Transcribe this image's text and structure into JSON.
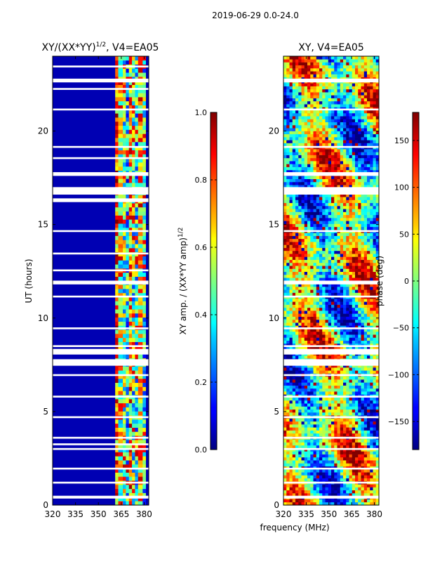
{
  "figure_title": "2019-06-29 0.0-24.0",
  "chart_data": [
    {
      "type": "heatmap",
      "title_main": "XY/(XX*YY)",
      "title_exponent": "1/2",
      "title_suffix": ", V4=EA05",
      "xlabel": "",
      "ylabel": "UT (hours)",
      "xlim": [
        320,
        383
      ],
      "ylim": [
        0,
        24
      ],
      "xticks": [
        320,
        335,
        350,
        365,
        380
      ],
      "yticks": [
        0,
        5,
        10,
        15,
        20
      ],
      "colorbar": {
        "label_main": "XY amp. / (XX*YY amp)",
        "label_exponent": "1/2",
        "range": [
          0.0,
          1.0
        ],
        "ticks": [
          0.0,
          0.2,
          0.4,
          0.6,
          0.8,
          1.0
        ],
        "tick_labels": [
          "0.0",
          "0.2",
          "0.4",
          "0.6",
          "0.8",
          "1.0"
        ],
        "colormap": "jet"
      },
      "band_ranges_mhz": [
        [
          361,
          363,
          0.75
        ],
        [
          363,
          366,
          0.55
        ],
        [
          366,
          368,
          0.5
        ],
        [
          368,
          370,
          0.35
        ],
        [
          370,
          372,
          0.7
        ],
        [
          372,
          374,
          0.45
        ],
        [
          374,
          376,
          0.4
        ],
        [
          376,
          379,
          0.65
        ],
        [
          379,
          381,
          0.4
        ]
      ],
      "background_value": 0.05,
      "blank_rows_hours": [
        [
          0.35,
          0.5
        ],
        [
          1.15,
          1.25
        ],
        [
          1.9,
          2.0
        ],
        [
          2.95,
          3.05
        ],
        [
          3.2,
          3.3
        ],
        [
          3.55,
          3.65
        ],
        [
          4.65,
          4.75
        ],
        [
          5.75,
          5.85
        ],
        [
          6.9,
          7.0
        ],
        [
          7.45,
          7.8
        ],
        [
          8.05,
          8.35
        ],
        [
          8.45,
          8.55
        ],
        [
          9.4,
          9.5
        ],
        [
          11.1,
          11.2
        ],
        [
          11.8,
          12.0
        ],
        [
          12.5,
          12.6
        ],
        [
          13.4,
          13.5
        ],
        [
          14.6,
          14.7
        ],
        [
          16.2,
          16.4
        ],
        [
          16.6,
          17.0
        ],
        [
          17.6,
          17.8
        ],
        [
          18.5,
          18.6
        ],
        [
          19.1,
          19.2
        ],
        [
          21.1,
          21.2
        ],
        [
          22.2,
          22.3
        ],
        [
          22.6,
          22.8
        ],
        [
          23.4,
          23.5
        ]
      ]
    },
    {
      "type": "heatmap",
      "title": "XY, V4=EA05",
      "xlabel": "frequency (MHz)",
      "ylabel": "",
      "xlim": [
        320,
        383
      ],
      "ylim": [
        0,
        24
      ],
      "xticks": [
        320,
        335,
        350,
        365,
        380
      ],
      "yticks": [
        0,
        5,
        10,
        15,
        20
      ],
      "colorbar": {
        "label": "phase (deg)",
        "range": [
          -180,
          180
        ],
        "ticks": [
          -150,
          -100,
          -50,
          0,
          50,
          100,
          150
        ],
        "tick_labels": [
          "−150",
          "−100",
          "−50",
          "0",
          "50",
          "100",
          "150"
        ],
        "colormap": "jet"
      },
      "blank_rows_hours": [
        [
          0.35,
          0.5
        ],
        [
          1.15,
          1.25
        ],
        [
          1.9,
          2.0
        ],
        [
          2.95,
          3.05
        ],
        [
          3.55,
          3.65
        ],
        [
          4.65,
          4.75
        ],
        [
          5.75,
          5.85
        ],
        [
          6.9,
          7.0
        ],
        [
          7.45,
          7.8
        ],
        [
          8.05,
          8.35
        ],
        [
          8.45,
          8.55
        ],
        [
          9.4,
          9.5
        ],
        [
          11.1,
          11.2
        ],
        [
          11.8,
          12.0
        ],
        [
          14.6,
          14.7
        ],
        [
          16.6,
          17.0
        ],
        [
          17.6,
          17.8
        ],
        [
          19.1,
          19.2
        ],
        [
          21.1,
          21.2
        ],
        [
          22.6,
          22.8
        ]
      ]
    }
  ]
}
